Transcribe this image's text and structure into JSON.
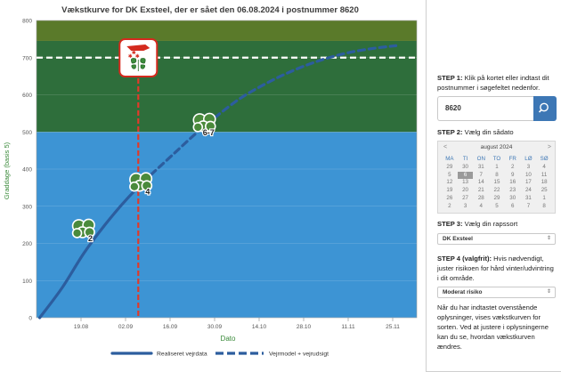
{
  "chart_data": {
    "type": "line",
    "title": "Vækstkurve for DK Exsteel, der er sået den 06.08.2024 i postnummer 8620",
    "xlabel": "Dato",
    "ylabel": "Graddage (basis 5)",
    "x_ticks": [
      "19.08",
      "02.09",
      "16.09",
      "30.09",
      "14.10",
      "28.10",
      "11.11",
      "25.11"
    ],
    "y_ticks": [
      "0",
      "100",
      "200",
      "300",
      "400",
      "500",
      "600",
      "700",
      "800"
    ],
    "ylim": [
      0,
      800
    ],
    "zones": [
      {
        "from": 0,
        "to": 500,
        "color": "#3d94d4"
      },
      {
        "from": 500,
        "to": 745,
        "color": "#2e6e3b"
      },
      {
        "from": 745,
        "to": 800,
        "color": "#5a7a2a"
      }
    ],
    "target_value": 700,
    "today_date": "06.09",
    "series": [
      {
        "name": "Realiseret vejrdata",
        "style": "solid",
        "color": "#2c5d9e",
        "x": [
          "06.08",
          "13.08",
          "20.08",
          "27.08",
          "03.09",
          "10.09"
        ],
        "y": [
          0,
          80,
          175,
          255,
          325,
          385
        ]
      },
      {
        "name": "Vejrmodel + vejrudsigt",
        "style": "dashed",
        "color": "#2c5d9e",
        "x": [
          "10.09",
          "17.09",
          "24.09",
          "01.10",
          "08.10",
          "15.10",
          "22.10",
          "29.10",
          "05.11",
          "12.11",
          "19.11",
          "26.11"
        ],
        "y": [
          385,
          440,
          495,
          545,
          590,
          625,
          655,
          680,
          700,
          715,
          725,
          732
        ]
      }
    ],
    "stage_markers": [
      {
        "label": "2",
        "date": "20.08",
        "value": 235
      },
      {
        "label": "4",
        "date": "07.09",
        "value": 360
      },
      {
        "label": "6-7",
        "date": "27.09",
        "value": 520
      }
    ],
    "legend": [
      "Realiseret vejrdata",
      "Vejrmodel + vejrudsigt"
    ],
    "legend_placement": "bottom"
  },
  "panel": {
    "step1_bold": "STEP 1:",
    "step1_text": " Klik på kortet eller indtast dit postnummer i søgefeltet nedenfor.",
    "postal_value": "8620",
    "step2_bold": "STEP 2:",
    "step2_text": " Vælg din sådato",
    "step3_bold": "STEP 3:",
    "step3_text": " Vælg din rapssort",
    "variety_value": "DK Exsteel",
    "step4_bold": "STEP 4 (valgfrit):",
    "step4_text": " Hvis nødvendigt, juster risikoen for hård vinter/udvintring i dit område.",
    "risk_value": "Moderat risiko",
    "footer_text": "Når du har indtastet ovenstående oplysninger, vises vækstkurven for sorten. Ved at justere i oplysningerne kan du se, hvordan vækstkurven ændres."
  },
  "calendar": {
    "month": "august 2024",
    "prev": "<",
    "next": ">",
    "day_names": [
      "MA",
      "TI",
      "ON",
      "TO",
      "FR",
      "LØ",
      "SØ"
    ],
    "days": [
      "29",
      "30",
      "31",
      "1",
      "2",
      "3",
      "4",
      "5",
      "6",
      "7",
      "8",
      "9",
      "10",
      "11",
      "12",
      "13",
      "14",
      "15",
      "16",
      "17",
      "18",
      "19",
      "20",
      "21",
      "22",
      "23",
      "24",
      "25",
      "26",
      "27",
      "28",
      "29",
      "30",
      "31",
      "1",
      "2",
      "3",
      "4",
      "5",
      "6",
      "7",
      "8"
    ],
    "selected": "6"
  },
  "colors": {
    "accent": "#3d77b5",
    "today_line": "#e03a2a",
    "target_line": "#ffffff"
  }
}
